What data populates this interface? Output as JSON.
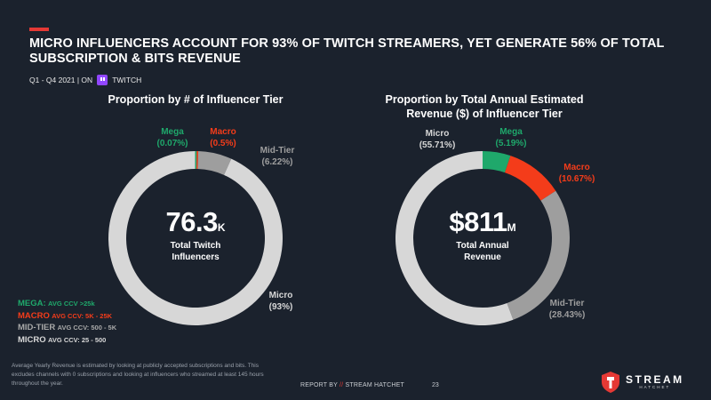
{
  "header": {
    "title": "MICRO INFLUENCERS ACCOUNT FOR 93% OF TWITCH STREAMERS, YET GENERATE 56% OF TOTAL SUBSCRIPTION & BITS REVENUE",
    "period": "Q1 - Q4 2021 | ON",
    "platform": "TWITCH",
    "accent_color": "#e53935",
    "platform_icon": "twitch-icon"
  },
  "colors": {
    "mega": "#1fa86b",
    "macro": "#f43c1a",
    "mid_tier": "#9e9e9e",
    "micro": "#d7d7d7",
    "background": "#1b222d"
  },
  "chart_data": [
    {
      "type": "pie",
      "variant": "donut",
      "title": "Proportion by # of Influencer Tier",
      "start_angle_deg": 0,
      "direction": "clockwise",
      "slices": [
        {
          "key": "macro",
          "name": "Macro",
          "value": 0.5,
          "label": "(0.5%)"
        },
        {
          "key": "mid_tier",
          "name": "Mid-Tier",
          "value": 6.22,
          "label": "(6.22%)"
        },
        {
          "key": "micro",
          "name": "Micro",
          "value": 93,
          "label": "(93%)"
        },
        {
          "key": "mega",
          "name": "Mega",
          "value": 0.07,
          "label": "(0.07%)"
        }
      ],
      "center": {
        "value": "76.3",
        "suffix": "K",
        "caption_line1": "Total Twitch",
        "caption_line2": "Influencers"
      }
    },
    {
      "type": "pie",
      "variant": "donut",
      "title_line1": "Proportion by Total Annual Estimated",
      "title_line2": "Revenue ($) of Influencer Tier",
      "start_angle_deg": 0,
      "direction": "clockwise",
      "slices": [
        {
          "key": "mega",
          "name": "Mega",
          "value": 5.19,
          "label": "(5.19%)"
        },
        {
          "key": "macro",
          "name": "Macro",
          "value": 10.67,
          "label": "(10.67%)"
        },
        {
          "key": "mid_tier",
          "name": "Mid-Tier",
          "value": 28.43,
          "label": "(28.43%)"
        },
        {
          "key": "micro",
          "name": "Micro",
          "value": 55.71,
          "label": "(55.71%)"
        }
      ],
      "center": {
        "value": "$811",
        "suffix": "M",
        "caption_line1": "Total Annual",
        "caption_line2": "Revenue"
      }
    }
  ],
  "legend": [
    {
      "key": "mega",
      "tier": "MEGA:",
      "desc": "AVG CCV >25k"
    },
    {
      "key": "macro",
      "tier": "MACRO",
      "desc": "AVG CCV: 5K - 25K"
    },
    {
      "key": "mid_tier",
      "tier": "MID-TIER",
      "desc": "AVG CCV: 500 - 5K"
    },
    {
      "key": "micro",
      "tier": "MICRO",
      "desc": "AVG CCV: 25 - 500"
    }
  ],
  "footer": {
    "footnote": "Average Yearly Revenue is estimated by looking at publicly accepted subscriptions and bits. This excludes channels with 0 subscriptions and looking at influencers who streamed at least 145 hours throughout the year.",
    "report_prefix": "REPORT BY",
    "report_sep": "//",
    "report_name": "STREAM HATCHET",
    "page_number": "23",
    "brand_main": "STREAM",
    "brand_sub": "HATCHET",
    "brand_icon": "stream-hatchet-logo-icon"
  }
}
